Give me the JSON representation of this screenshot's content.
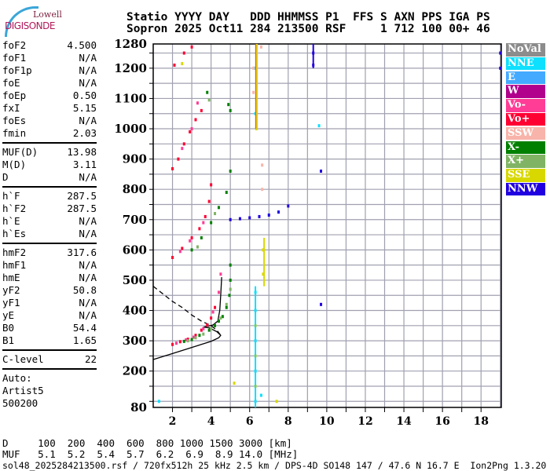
{
  "logo": {
    "line1": "Lowell",
    "line2": "DIGISONDE"
  },
  "header": {
    "line1": "Statio YYYY DAY   DDD HHMMSS P1  FFS S AXN PPS IGA PS",
    "line2": "Sopron 2025 Oct11 284 213500 RSF     1 712 100 00+ 46"
  },
  "panel": {
    "groups": [
      [
        {
          "k": "foF2",
          "v": "4.500"
        },
        {
          "k": "foF1",
          "v": "N/A"
        },
        {
          "k": "foF1p",
          "v": "N/A"
        },
        {
          "k": "foE",
          "v": "N/A"
        },
        {
          "k": "foEp",
          "v": "0.50"
        },
        {
          "k": "fxI",
          "v": "5.15"
        },
        {
          "k": "foEs",
          "v": "N/A"
        },
        {
          "k": "fmin",
          "v": "2.03"
        }
      ],
      [
        {
          "k": "MUF(D)",
          "v": "13.98"
        },
        {
          "k": "M(D)",
          "v": "3.11"
        },
        {
          "k": "D",
          "v": "N/A"
        }
      ],
      [
        {
          "k": "h`F",
          "v": "287.5"
        },
        {
          "k": "h`F2",
          "v": "287.5"
        },
        {
          "k": "h`E",
          "v": "N/A"
        },
        {
          "k": "h`Es",
          "v": "N/A"
        }
      ],
      [
        {
          "k": "hmF2",
          "v": "317.6"
        },
        {
          "k": "hmF1",
          "v": "N/A"
        },
        {
          "k": "hmE",
          "v": "N/A"
        },
        {
          "k": "yF2",
          "v": "50.8"
        },
        {
          "k": "yF1",
          "v": "N/A"
        },
        {
          "k": "yE",
          "v": "N/A"
        },
        {
          "k": "B0",
          "v": "54.4"
        },
        {
          "k": "B1",
          "v": "1.65"
        }
      ],
      [
        {
          "k": "C-level",
          "v": "22"
        }
      ]
    ],
    "auto": [
      "Auto:",
      "Artist5",
      "500200"
    ]
  },
  "legend": [
    {
      "label": "NoVal",
      "color": "#8c8c8c"
    },
    {
      "label": "NNE",
      "color": "#0ee0ff"
    },
    {
      "label": "E",
      "color": "#44aaff"
    },
    {
      "label": "W",
      "color": "#b0008c"
    },
    {
      "label": "Vo-",
      "color": "#ff3c96"
    },
    {
      "label": "Vo+",
      "color": "#ff0032"
    },
    {
      "label": "SSW",
      "color": "#f8b4aa"
    },
    {
      "label": "X-",
      "color": "#008000"
    },
    {
      "label": "X+",
      "color": "#80b464"
    },
    {
      "label": "SSE",
      "color": "#d8d800"
    },
    {
      "label": "NNW",
      "color": "#2000e0"
    }
  ],
  "muf_table": {
    "d_row": "D     100  200  400  600  800 1000 1500 3000 [km]",
    "muf_row": "MUF   5.1  5.2  5.4  5.7  6.2  6.9  8.9 14.0 [MHz]"
  },
  "footer": "sol48_2025284213500.rsf / 720fx512h 25 kHz 2.5 km / DPS-4D SO148 147 / 47.6 N 16.7 E  Ion2Png 1.3.20",
  "chart_data": {
    "type": "scatter",
    "title": "",
    "xlabel": "",
    "ylabel": "",
    "xlim": [
      1.0,
      19.05
    ],
    "ylim": [
      80,
      1280
    ],
    "x_ticks": [
      2,
      4,
      6,
      8,
      10,
      12,
      14,
      16,
      18
    ],
    "y_ticks": [
      80,
      200,
      300,
      400,
      500,
      600,
      700,
      800,
      900,
      1000,
      1100,
      1200,
      1280
    ],
    "grid": true,
    "legend_position": "right",
    "series": [
      {
        "name": "Vo+",
        "color": "#ff0032",
        "points": [
          [
            2.0,
            288
          ],
          [
            2.4,
            297
          ],
          [
            2.8,
            305
          ],
          [
            3.2,
            318
          ],
          [
            3.5,
            335
          ],
          [
            3.8,
            352
          ],
          [
            4.0,
            375
          ],
          [
            4.2,
            410
          ],
          [
            2.0,
            575
          ],
          [
            2.5,
            605
          ],
          [
            3.0,
            640
          ],
          [
            3.4,
            670
          ],
          [
            3.7,
            710
          ],
          [
            3.9,
            760
          ],
          [
            4.0,
            815
          ],
          [
            2.0,
            868
          ],
          [
            2.3,
            900
          ],
          [
            2.6,
            950
          ],
          [
            2.9,
            990
          ],
          [
            3.2,
            1030
          ],
          [
            3.5,
            1060
          ],
          [
            2.1,
            1210
          ],
          [
            2.6,
            1250
          ],
          [
            3.0,
            1270
          ]
        ]
      },
      {
        "name": "Vo-",
        "color": "#ff3c96",
        "points": [
          [
            2.2,
            292
          ],
          [
            2.7,
            303
          ],
          [
            3.1,
            312
          ],
          [
            3.6,
            340
          ],
          [
            4.1,
            395
          ],
          [
            4.4,
            460
          ],
          [
            4.5,
            520
          ],
          [
            2.4,
            595
          ],
          [
            2.9,
            630
          ],
          [
            3.6,
            690
          ],
          [
            2.5,
            935
          ],
          [
            3.0,
            1000
          ],
          [
            3.3,
            1085
          ]
        ]
      },
      {
        "name": "X-",
        "color": "#008000",
        "points": [
          [
            2.6,
            298
          ],
          [
            3.0,
            304
          ],
          [
            3.4,
            318
          ],
          [
            3.9,
            335
          ],
          [
            4.2,
            350
          ],
          [
            4.4,
            365
          ],
          [
            4.6,
            380
          ],
          [
            4.8,
            410
          ],
          [
            4.95,
            450
          ],
          [
            5.0,
            500
          ],
          [
            5.0,
            550
          ],
          [
            3.0,
            600
          ],
          [
            3.5,
            640
          ],
          [
            4.0,
            690
          ],
          [
            4.4,
            740
          ],
          [
            4.8,
            790
          ],
          [
            5.0,
            860
          ],
          [
            4.9,
            1080
          ],
          [
            5.0,
            1060
          ],
          [
            3.8,
            1120
          ]
        ]
      },
      {
        "name": "X+",
        "color": "#80b464",
        "points": [
          [
            2.8,
            300
          ],
          [
            3.2,
            310
          ],
          [
            3.6,
            322
          ],
          [
            4.0,
            340
          ],
          [
            4.5,
            375
          ],
          [
            4.8,
            420
          ],
          [
            5.0,
            470
          ],
          [
            3.3,
            610
          ],
          [
            4.2,
            720
          ],
          [
            3.9,
            1095
          ]
        ]
      },
      {
        "name": "NNW",
        "color": "#2000e0",
        "points": [
          [
            5.0,
            700
          ],
          [
            5.5,
            703
          ],
          [
            6.0,
            706
          ],
          [
            6.5,
            710
          ],
          [
            7.0,
            715
          ],
          [
            7.5,
            725
          ],
          [
            8.0,
            745
          ],
          [
            9.3,
            1250
          ],
          [
            9.3,
            1210
          ],
          [
            9.7,
            860
          ],
          [
            9.7,
            420
          ],
          [
            19.0,
            1200
          ],
          [
            19.0,
            1250
          ]
        ]
      },
      {
        "name": "NNE",
        "color": "#0ee0ff",
        "points": [
          [
            6.3,
            100
          ],
          [
            6.3,
            200
          ],
          [
            6.3,
            300
          ],
          [
            6.3,
            400
          ],
          [
            6.3,
            460
          ],
          [
            6.3,
            1050
          ],
          [
            6.3,
            1200
          ],
          [
            6.6,
            120
          ],
          [
            9.6,
            1010
          ],
          [
            1.3,
            100
          ]
        ]
      },
      {
        "name": "SSE",
        "color": "#d8d800",
        "points": [
          [
            6.3,
            150
          ],
          [
            6.3,
            250
          ],
          [
            6.3,
            350
          ],
          [
            6.35,
            1000
          ],
          [
            6.35,
            1100
          ],
          [
            6.35,
            1250
          ],
          [
            6.7,
            520
          ],
          [
            6.7,
            600
          ],
          [
            7.4,
            100
          ],
          [
            5.2,
            160
          ],
          [
            2.5,
            1215
          ]
        ]
      },
      {
        "name": "SSW",
        "color": "#f8b4aa",
        "points": [
          [
            6.65,
            880
          ],
          [
            6.65,
            800
          ],
          [
            6.6,
            1270
          ],
          [
            6.2,
            1200
          ],
          [
            6.2,
            1120
          ]
        ]
      }
    ],
    "profile": {
      "solid": [
        [
          1.0,
          238
        ],
        [
          2.0,
          258
        ],
        [
          3.0,
          278
        ],
        [
          4.0,
          298
        ],
        [
          4.4,
          310
        ],
        [
          4.5,
          318
        ],
        [
          4.3,
          330
        ],
        [
          3.9,
          343
        ],
        [
          3.6,
          345
        ],
        [
          4.1,
          352
        ],
        [
          4.35,
          365
        ],
        [
          4.45,
          400
        ],
        [
          4.5,
          450
        ],
        [
          4.55,
          510
        ]
      ],
      "dashed": [
        [
          1.0,
          480
        ],
        [
          1.5,
          455
        ],
        [
          2.0,
          430
        ],
        [
          2.5,
          410
        ],
        [
          3.0,
          385
        ],
        [
          3.5,
          365
        ],
        [
          4.0,
          350
        ],
        [
          4.3,
          335
        ],
        [
          4.5,
          318
        ]
      ]
    }
  }
}
